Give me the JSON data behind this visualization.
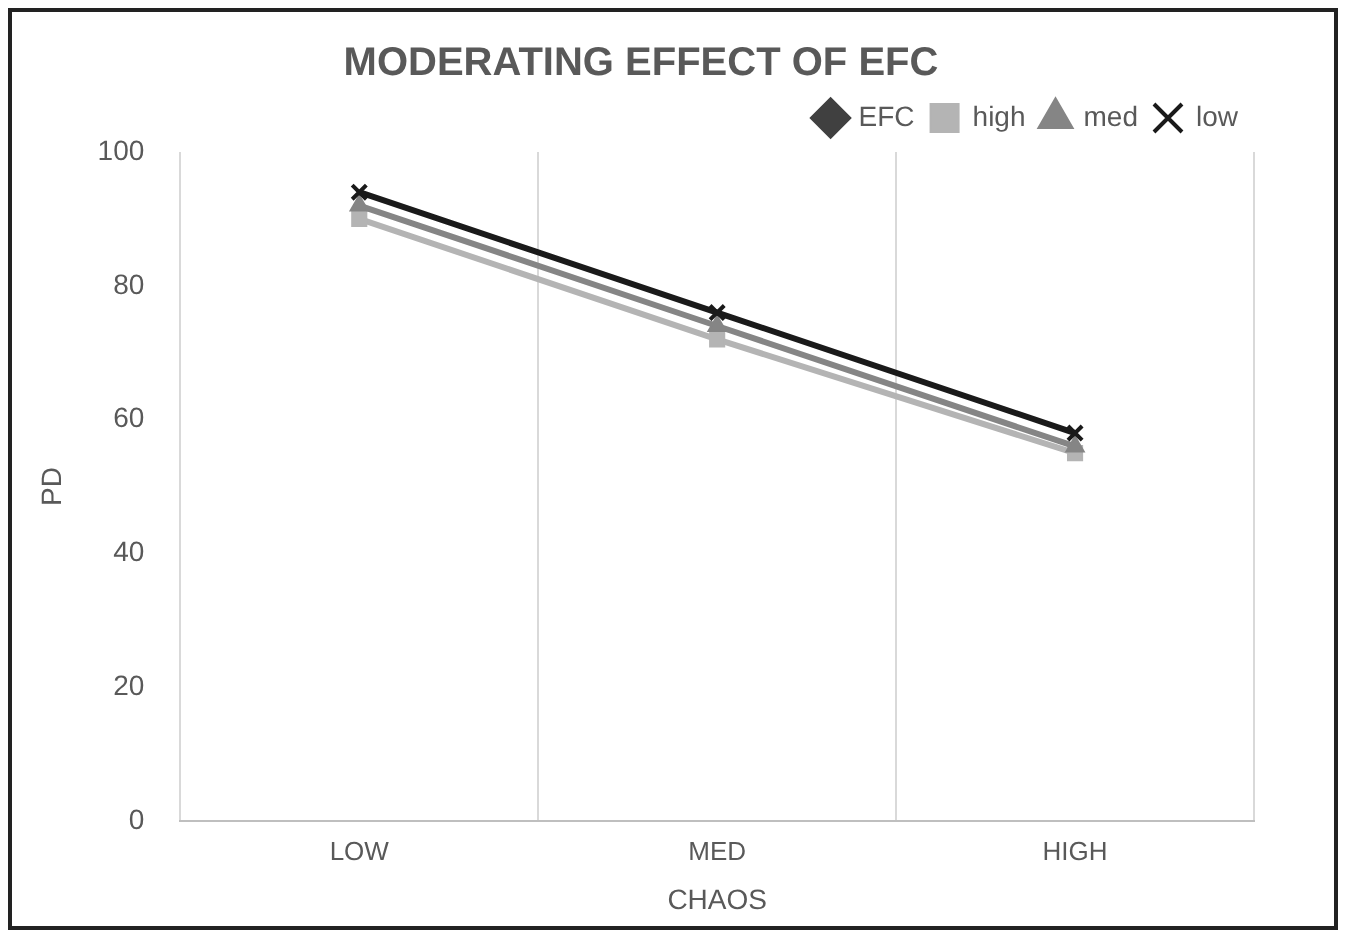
{
  "chart_data": {
    "type": "line",
    "title": "MODERATING EFFECT OF EFC",
    "xlabel": "CHAOS",
    "ylabel": "PD",
    "categories": [
      "LOW",
      "MED",
      "HIGH"
    ],
    "series": [
      {
        "name": "EFC",
        "color": "#404040",
        "marker": "diamond",
        "values": [
          null,
          null,
          null
        ]
      },
      {
        "name": "high",
        "color": "#b4b4b4",
        "marker": "square",
        "values": [
          90,
          72,
          55
        ]
      },
      {
        "name": "med",
        "color": "#858585",
        "marker": "triangle",
        "values": [
          92,
          74,
          56
        ]
      },
      {
        "name": "low",
        "color": "#1a1a1a",
        "marker": "cross",
        "values": [
          94,
          76,
          58
        ]
      }
    ],
    "ylim": [
      0,
      100
    ],
    "yticks": [
      0,
      20,
      40,
      60,
      80,
      100
    ],
    "grid": "x",
    "legend": "top right",
    "line_style": "solid"
  }
}
